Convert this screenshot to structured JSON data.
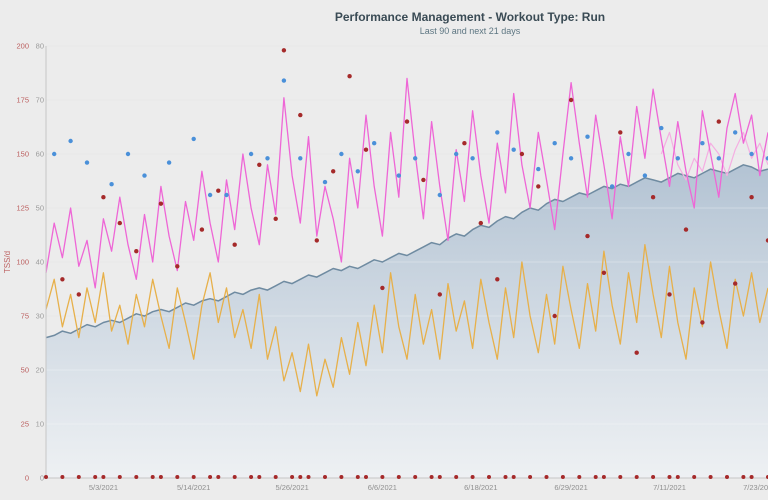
{
  "colors": {
    "background": "#ececec",
    "grid": "#e0e0e0",
    "grid_over_area": "rgba(255,255,255,0.30)",
    "axis_line": "#c6c6c6",
    "red_axis_text": "#bc5f5f",
    "gray_axis_text": "#9b9b9b",
    "date_text": "#8f8f8f",
    "title_text": "#3a4b55",
    "subtitle_text": "#5d7682"
  },
  "chart_data": {
    "type": "line",
    "title": "Performance Management - Workout Type: Run",
    "subtitle": "Last 90 and next 21 days",
    "grid": "on",
    "legend": "none",
    "x_axis": {
      "tick_labels": [
        "5/3/2021",
        "5/14/2021",
        "5/26/2021",
        "6/6/2021",
        "6/18/2021",
        "6/29/2021",
        "7/11/2021",
        "7/23/2021"
      ],
      "tick_days": [
        7,
        18,
        30,
        41,
        53,
        64,
        76,
        87
      ],
      "days_visible": 89
    },
    "y_axis_primary": {
      "label": "TSS/d",
      "color": "#bc5f5f",
      "range": [
        0,
        200
      ],
      "ticks": [
        200,
        175,
        150,
        125,
        100,
        75,
        50,
        25,
        0
      ]
    },
    "y_axis_secondary": {
      "color": "#9b9b9b",
      "range": [
        0,
        80
      ],
      "ticks": [
        80,
        70,
        60,
        50,
        40,
        30,
        20,
        10,
        0
      ]
    },
    "series": [
      {
        "name": "fitness-area",
        "type": "area",
        "stroke": "#6f8ba1",
        "fill_top": "#b0c1d2",
        "fill_bottom": "#eef1f4",
        "values": [
          65,
          66,
          68,
          67,
          69,
          71,
          70,
          72,
          73,
          72,
          74,
          76,
          75,
          77,
          78,
          77,
          79,
          81,
          80,
          82,
          83,
          82,
          84,
          86,
          85,
          87,
          88,
          87,
          89,
          91,
          90,
          92,
          94,
          93,
          95,
          97,
          96,
          98,
          97,
          99,
          101,
          100,
          102,
          104,
          103,
          105,
          107,
          109,
          108,
          111,
          113,
          112,
          115,
          117,
          116,
          119,
          121,
          120,
          123,
          125,
          124,
          127,
          129,
          128,
          130,
          132,
          131,
          133,
          135,
          134,
          136,
          135,
          137,
          139,
          138,
          137,
          139,
          141,
          140,
          139,
          141,
          143,
          142,
          141,
          143,
          145,
          144,
          142,
          143
        ]
      },
      {
        "name": "magenta-line",
        "type": "line",
        "color": "#ee66d6",
        "values": [
          95,
          118,
          102,
          125,
          98,
          110,
          88,
          120,
          105,
          130,
          108,
          92,
          122,
          100,
          135,
          112,
          96,
          128,
          110,
          142,
          118,
          100,
          138,
          115,
          150,
          125,
          108,
          145,
          122,
          176,
          140,
          118,
          158,
          112,
          135,
          120,
          100,
          148,
          125,
          168,
          135,
          112,
          160,
          130,
          185,
          150,
          120,
          165,
          135,
          110,
          152,
          128,
          170,
          140,
          118,
          155,
          132,
          178,
          145,
          125,
          160,
          138,
          115,
          150,
          183,
          155,
          130,
          168,
          145,
          120,
          158,
          135,
          172,
          148,
          180,
          157,
          135,
          165,
          142,
          125,
          170,
          150,
          130,
          162,
          178,
          155,
          168,
          140,
          160
        ]
      },
      {
        "name": "magenta-forecast-line",
        "type": "line",
        "color": "#f5aee2",
        "start_day": 75,
        "values": [
          150,
          160,
          145,
          138,
          148,
          142,
          155,
          150,
          140,
          152,
          160,
          148,
          155,
          145
        ]
      },
      {
        "name": "orange-line",
        "type": "line",
        "color": "#e7b04a",
        "values": [
          78,
          92,
          70,
          85,
          65,
          88,
          72,
          95,
          68,
          80,
          62,
          85,
          70,
          92,
          75,
          60,
          88,
          72,
          55,
          80,
          95,
          72,
          88,
          65,
          78,
          60,
          85,
          55,
          70,
          45,
          58,
          40,
          62,
          38,
          55,
          42,
          65,
          48,
          72,
          52,
          80,
          58,
          95,
          70,
          55,
          85,
          62,
          78,
          55,
          90,
          68,
          82,
          60,
          92,
          72,
          55,
          88,
          65,
          100,
          75,
          58,
          85,
          62,
          98,
          78,
          60,
          90,
          68,
          105,
          80,
          62,
          95,
          72,
          108,
          85,
          65,
          98,
          72,
          55,
          88,
          70,
          100,
          78,
          60,
          92,
          75,
          95,
          72,
          88
        ]
      },
      {
        "name": "blue-dots",
        "type": "scatter",
        "color": "#4a90d9",
        "points": [
          [
            1,
            150
          ],
          [
            3,
            156
          ],
          [
            5,
            146
          ],
          [
            8,
            136
          ],
          [
            10,
            150
          ],
          [
            12,
            140
          ],
          [
            15,
            146
          ],
          [
            18,
            157
          ],
          [
            20,
            131
          ],
          [
            22,
            131
          ],
          [
            25,
            150
          ],
          [
            27,
            148
          ],
          [
            29,
            184
          ],
          [
            31,
            148
          ],
          [
            34,
            137
          ],
          [
            36,
            150
          ],
          [
            38,
            142
          ],
          [
            40,
            155
          ],
          [
            43,
            140
          ],
          [
            45,
            148
          ],
          [
            48,
            131
          ],
          [
            50,
            150
          ],
          [
            52,
            148
          ],
          [
            55,
            160
          ],
          [
            57,
            152
          ],
          [
            60,
            143
          ],
          [
            62,
            155
          ],
          [
            64,
            148
          ],
          [
            66,
            158
          ],
          [
            69,
            135
          ],
          [
            71,
            150
          ],
          [
            73,
            140
          ],
          [
            75,
            162
          ],
          [
            77,
            148
          ],
          [
            80,
            155
          ],
          [
            82,
            148
          ],
          [
            84,
            160
          ],
          [
            86,
            150
          ],
          [
            88,
            148
          ]
        ]
      },
      {
        "name": "red-dots",
        "type": "scatter",
        "color": "#a52a2a",
        "points": [
          [
            2,
            92
          ],
          [
            4,
            85
          ],
          [
            7,
            130
          ],
          [
            9,
            118
          ],
          [
            11,
            105
          ],
          [
            14,
            127
          ],
          [
            16,
            98
          ],
          [
            19,
            115
          ],
          [
            21,
            133
          ],
          [
            23,
            108
          ],
          [
            26,
            145
          ],
          [
            28,
            120
          ],
          [
            29,
            198
          ],
          [
            31,
            168
          ],
          [
            33,
            110
          ],
          [
            35,
            142
          ],
          [
            37,
            186
          ],
          [
            39,
            152
          ],
          [
            41,
            88
          ],
          [
            44,
            165
          ],
          [
            46,
            138
          ],
          [
            48,
            85
          ],
          [
            51,
            155
          ],
          [
            53,
            118
          ],
          [
            55,
            92
          ],
          [
            58,
            150
          ],
          [
            60,
            135
          ],
          [
            62,
            75
          ],
          [
            64,
            175
          ],
          [
            66,
            112
          ],
          [
            68,
            95
          ],
          [
            70,
            160
          ],
          [
            72,
            58
          ],
          [
            74,
            130
          ],
          [
            76,
            85
          ],
          [
            78,
            115
          ],
          [
            80,
            72
          ],
          [
            82,
            165
          ],
          [
            84,
            90
          ],
          [
            86,
            130
          ],
          [
            88,
            110
          ]
        ]
      },
      {
        "name": "baseline-red-dots",
        "type": "scatter",
        "color": "#a52a2a",
        "value": 0,
        "days": [
          0,
          2,
          4,
          6,
          7,
          9,
          11,
          13,
          14,
          16,
          18,
          20,
          21,
          23,
          25,
          26,
          28,
          30,
          31,
          32,
          34,
          36,
          38,
          39,
          41,
          43,
          45,
          47,
          48,
          50,
          52,
          54,
          56,
          57,
          59,
          61,
          63,
          65,
          67,
          68,
          70,
          72,
          74,
          76,
          77,
          79,
          81,
          83,
          85,
          86,
          88
        ]
      }
    ]
  }
}
